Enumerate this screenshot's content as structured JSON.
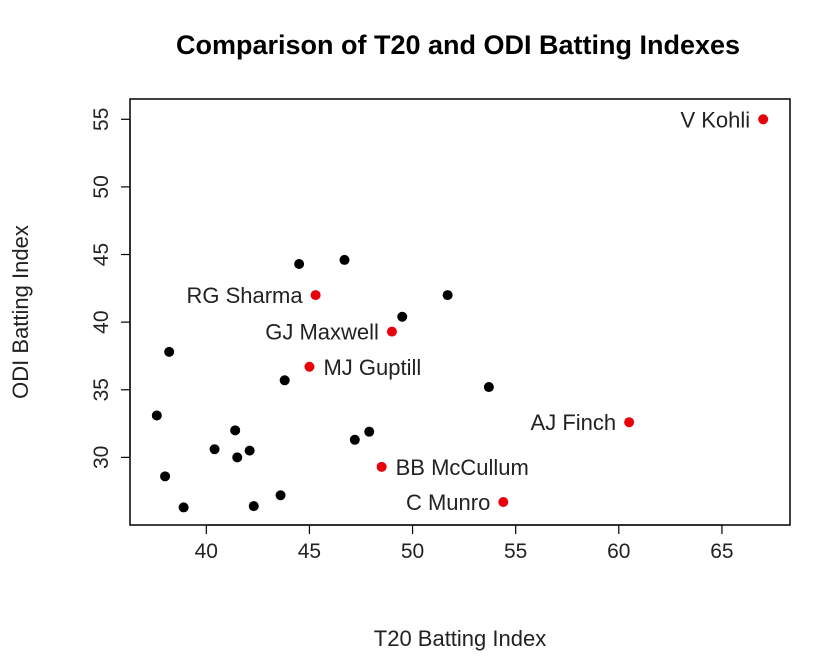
{
  "chart_data": {
    "type": "scatter",
    "title": "Comparison of T20 and ODI Batting Indexes",
    "xlabel": "T20 Batting Index",
    "ylabel": "ODI Batting Index",
    "xlim": [
      36.3,
      68.3
    ],
    "ylim": [
      25.0,
      56.5
    ],
    "xticks": [
      40,
      45,
      50,
      55,
      60,
      65
    ],
    "yticks": [
      30,
      35,
      40,
      45,
      50,
      55
    ],
    "grid": false,
    "colors": {
      "highlight": "#e8000b",
      "default": "#000000"
    },
    "series": [
      {
        "color": "#000000",
        "points": [
          {
            "x": 44.5,
            "y": 44.3
          },
          {
            "x": 46.7,
            "y": 44.6
          },
          {
            "x": 51.7,
            "y": 42.0
          },
          {
            "x": 49.5,
            "y": 40.4
          },
          {
            "x": 38.2,
            "y": 37.8
          },
          {
            "x": 43.8,
            "y": 35.7
          },
          {
            "x": 53.7,
            "y": 35.2
          },
          {
            "x": 37.6,
            "y": 33.1
          },
          {
            "x": 41.4,
            "y": 32.0
          },
          {
            "x": 47.9,
            "y": 31.9
          },
          {
            "x": 47.2,
            "y": 31.3
          },
          {
            "x": 40.4,
            "y": 30.6
          },
          {
            "x": 42.1,
            "y": 30.5
          },
          {
            "x": 41.5,
            "y": 30.0
          },
          {
            "x": 38.0,
            "y": 28.6
          },
          {
            "x": 43.6,
            "y": 27.2
          },
          {
            "x": 38.9,
            "y": 26.3
          },
          {
            "x": 42.3,
            "y": 26.4
          }
        ]
      },
      {
        "color": "#e8000b",
        "points": [
          {
            "x": 67.0,
            "y": 55.0,
            "label": "V Kohli",
            "label_pos": "left"
          },
          {
            "x": 45.3,
            "y": 42.0,
            "label": "RG Sharma",
            "label_pos": "left"
          },
          {
            "x": 49.0,
            "y": 39.3,
            "label": "GJ Maxwell",
            "label_pos": "left"
          },
          {
            "x": 45.0,
            "y": 36.7,
            "label": "MJ Guptill",
            "label_pos": "right"
          },
          {
            "x": 60.5,
            "y": 32.6,
            "label": "AJ Finch",
            "label_pos": "left"
          },
          {
            "x": 48.5,
            "y": 29.3,
            "label": "BB McCullum",
            "label_pos": "right"
          },
          {
            "x": 54.4,
            "y": 26.7,
            "label": "C Munro",
            "label_pos": "left"
          }
        ]
      }
    ]
  }
}
